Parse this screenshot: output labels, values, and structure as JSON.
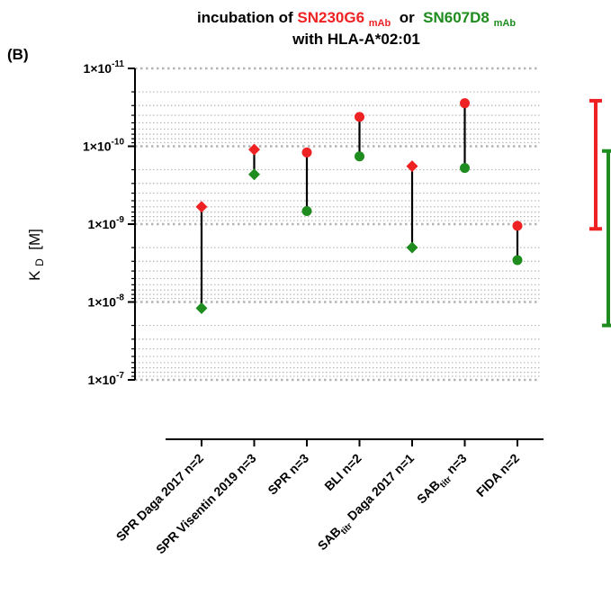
{
  "panel_label": "(B)",
  "title": {
    "line1_prefix": "incubation of ",
    "series1_name": "SN230G6",
    "series1_sub": "mAb",
    "connector": " or ",
    "series2_name": "SN607D8",
    "series2_sub": "mAb",
    "line2": "with HLA-A*02:01"
  },
  "colors": {
    "series1": "#ee2222",
    "series2": "#1e8c1e",
    "grid": "#b4b4b4",
    "axis": "#000000"
  },
  "y_axis": {
    "label_main": "K",
    "label_sub": "D",
    "label_unit": " [M]",
    "ticks": [
      {
        "value": 1e-11,
        "mant": "1×10",
        "exp": "-11"
      },
      {
        "value": 1e-10,
        "mant": "1×10",
        "exp": "-10"
      },
      {
        "value": 1e-09,
        "mant": "1×10",
        "exp": "-9"
      },
      {
        "value": 1e-08,
        "mant": "1×10",
        "exp": "-8"
      },
      {
        "value": 1e-07,
        "mant": "1×10",
        "exp": "-7"
      }
    ]
  },
  "chart_data": {
    "type": "scatter",
    "scale": "log",
    "y_reversed": true,
    "ylim": [
      1e-11,
      1e-07
    ],
    "grid": true,
    "categories": [
      {
        "parts": [
          [
            "SPR Daga 2017 n=2",
            false
          ]
        ]
      },
      {
        "parts": [
          [
            "SPR Visentin 2019 n=3",
            false
          ]
        ]
      },
      {
        "parts": [
          [
            "SPR n=3",
            false
          ]
        ]
      },
      {
        "parts": [
          [
            "BLI n=2",
            false
          ]
        ]
      },
      {
        "parts": [
          [
            "SAB",
            false
          ],
          [
            "titr",
            true
          ],
          [
            " Daga 2017 n=1",
            false
          ]
        ]
      },
      {
        "parts": [
          [
            "SAB",
            false
          ],
          [
            "titr",
            true
          ],
          [
            " n=3",
            false
          ]
        ]
      },
      {
        "parts": [
          [
            "FIDA n=2",
            false
          ]
        ]
      }
    ],
    "series": [
      {
        "name": "SN230G6mAb",
        "color": "#ee2222",
        "markers": [
          "diamond",
          "diamond",
          "circle",
          "circle",
          "diamond",
          "circle",
          "circle"
        ],
        "values": [
          6e-10,
          1.1e-10,
          1.2e-10,
          4.2e-11,
          1.8e-10,
          2.8e-11,
          1.05e-09
        ]
      },
      {
        "name": "SN607D8mAb",
        "color": "#1e8c1e",
        "markers": [
          "diamond",
          "diamond",
          "circle",
          "circle",
          "diamond",
          "circle",
          "circle"
        ],
        "values": [
          1.2e-08,
          2.3e-10,
          6.8e-10,
          1.35e-10,
          2e-09,
          1.9e-10,
          2.9e-09
        ]
      }
    ],
    "range_bars": [
      {
        "color": "#ee2222",
        "from": 2.6e-11,
        "to": 1.15e-09
      },
      {
        "color": "#1e8c1e",
        "from": 1.15e-10,
        "to": 2e-08
      }
    ]
  }
}
